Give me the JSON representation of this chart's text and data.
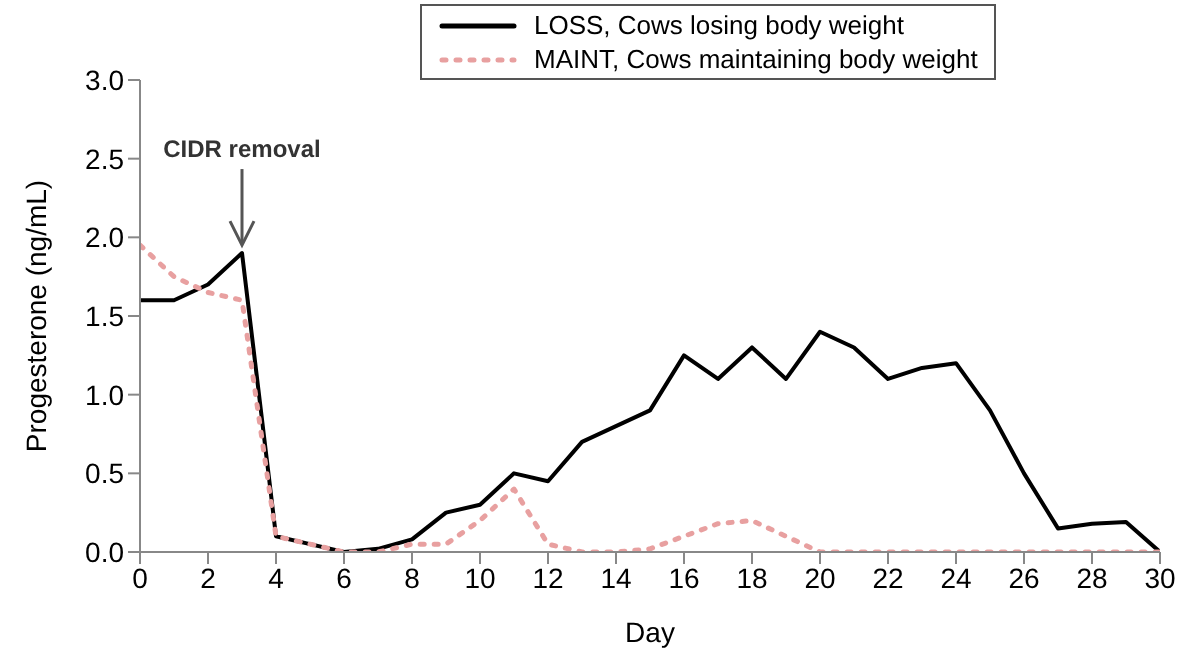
{
  "chart_data": {
    "type": "line",
    "xlabel": "Day",
    "ylabel": "Progesterone (ng/mL)",
    "x": [
      0,
      1,
      2,
      3,
      4,
      5,
      6,
      7,
      8,
      9,
      10,
      11,
      12,
      13,
      14,
      15,
      16,
      17,
      18,
      19,
      20,
      21,
      22,
      23,
      24,
      25,
      26,
      27,
      28,
      29,
      30
    ],
    "series": [
      {
        "name": "LOSS, Cows losing body weight",
        "color": "#000000",
        "line_style": "solid",
        "values": [
          1.6,
          1.6,
          1.7,
          1.9,
          0.1,
          0.05,
          0,
          0.02,
          0.08,
          0.25,
          0.3,
          0.5,
          0.45,
          0.7,
          0.8,
          0.9,
          1.25,
          1.1,
          1.3,
          1.1,
          1.4,
          1.3,
          1.1,
          1.17,
          1.2,
          0.9,
          0.5,
          0.15,
          0.18,
          0.19,
          0
        ]
      },
      {
        "name": "MAINT, Cows maintaining body weight",
        "color": "#e8a0a0",
        "line_style": "dotted",
        "values": [
          1.95,
          1.75,
          1.65,
          1.6,
          0.1,
          0.05,
          0,
          0,
          0.05,
          0.05,
          0.2,
          0.4,
          0.05,
          0,
          0,
          0.02,
          0.1,
          0.18,
          0.2,
          0.1,
          0,
          0,
          0,
          0,
          0,
          0,
          0,
          0,
          0,
          0,
          0
        ]
      }
    ],
    "annotations": [
      {
        "text": "CIDR removal",
        "x": 3,
        "y": 1.9
      }
    ],
    "xlim": [
      0,
      30
    ],
    "xticks": [
      0,
      2,
      4,
      6,
      8,
      10,
      12,
      14,
      16,
      18,
      20,
      22,
      24,
      26,
      28,
      30
    ],
    "ylim": [
      0,
      3
    ],
    "yticks": [
      {
        "value": 0,
        "label": "0.0"
      },
      {
        "value": 0.5,
        "label": "0.5"
      },
      {
        "value": 1,
        "label": "1.0"
      },
      {
        "value": 1.5,
        "label": "1.5"
      },
      {
        "value": 2,
        "label": "2.0"
      },
      {
        "value": 2.5,
        "label": "2.5"
      },
      {
        "value": 3,
        "label": "3.0"
      }
    ],
    "grid": false,
    "legend": "top",
    "marker": "none"
  }
}
